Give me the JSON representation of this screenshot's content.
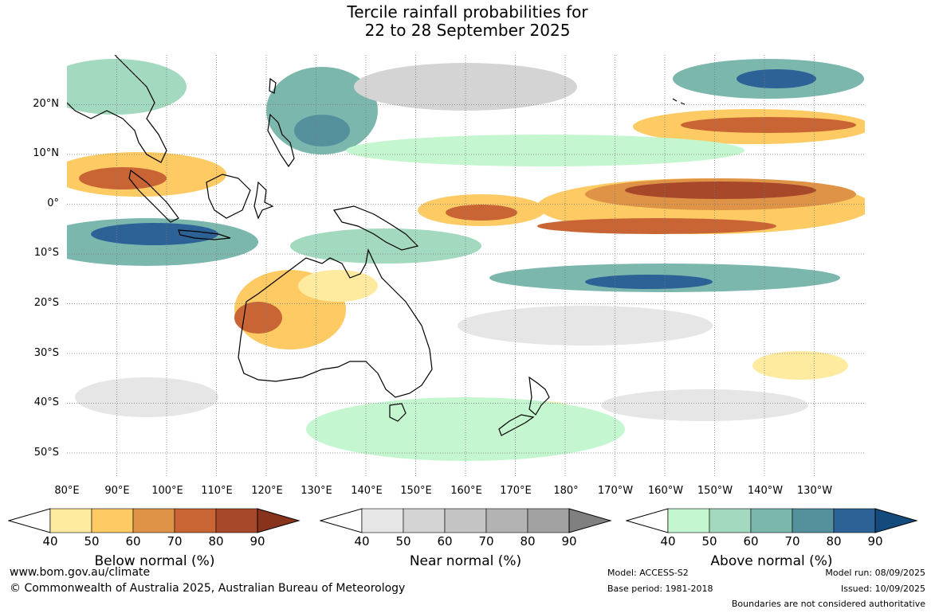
{
  "title": {
    "line1": "Tercile rainfall probabilities for",
    "line2": "22 to 28 September 2025"
  },
  "map": {
    "lat_labels": [
      "20°N",
      "10°N",
      "0°",
      "10°S",
      "20°S",
      "30°S",
      "40°S",
      "50°S"
    ],
    "lon_labels": [
      "80°E",
      "90°E",
      "100°E",
      "110°E",
      "120°E",
      "130°E",
      "140°E",
      "150°E",
      "160°E",
      "170°E",
      "180°",
      "170°W",
      "160°W",
      "150°W",
      "140°W",
      "130°W"
    ],
    "extent": {
      "lon_min": 80,
      "lon_max": 240,
      "lat_min": -55,
      "lat_max": 30
    }
  },
  "legends": [
    {
      "id": "below",
      "title": "Below normal (%)",
      "ticks": [
        "40",
        "50",
        "60",
        "70",
        "80",
        "90"
      ],
      "colors": [
        "#ffffff",
        "#feeba0",
        "#fdca63",
        "#df9347",
        "#c96434",
        "#a8482a",
        "#88341d"
      ]
    },
    {
      "id": "near",
      "title": "Near normal (%)",
      "ticks": [
        "40",
        "50",
        "60",
        "70",
        "80",
        "90"
      ],
      "colors": [
        "#ffffff",
        "#e6e6e6",
        "#d4d4d4",
        "#c4c4c4",
        "#b3b3b3",
        "#a2a2a2",
        "#808080"
      ]
    },
    {
      "id": "above",
      "title": "Above normal (%)",
      "ticks": [
        "40",
        "50",
        "60",
        "70",
        "80",
        "90"
      ],
      "colors": [
        "#ffffff",
        "#c4f7cf",
        "#a3d9bf",
        "#7cb7ae",
        "#55909d",
        "#2d6297",
        "#144b7c"
      ]
    }
  ],
  "footer": {
    "website": "www.bom.gov.au/climate",
    "copyright": "© Commonwealth of Australia 2025, Australian Bureau of Meteorology",
    "model": "Model: ACCESS-S2",
    "base_period": "Base period: 1981-2018",
    "model_run": "Model run: 08/09/2025",
    "issued": "Issued: 10/09/2025",
    "disclaimer": "Boundaries are not considered authoritative"
  }
}
